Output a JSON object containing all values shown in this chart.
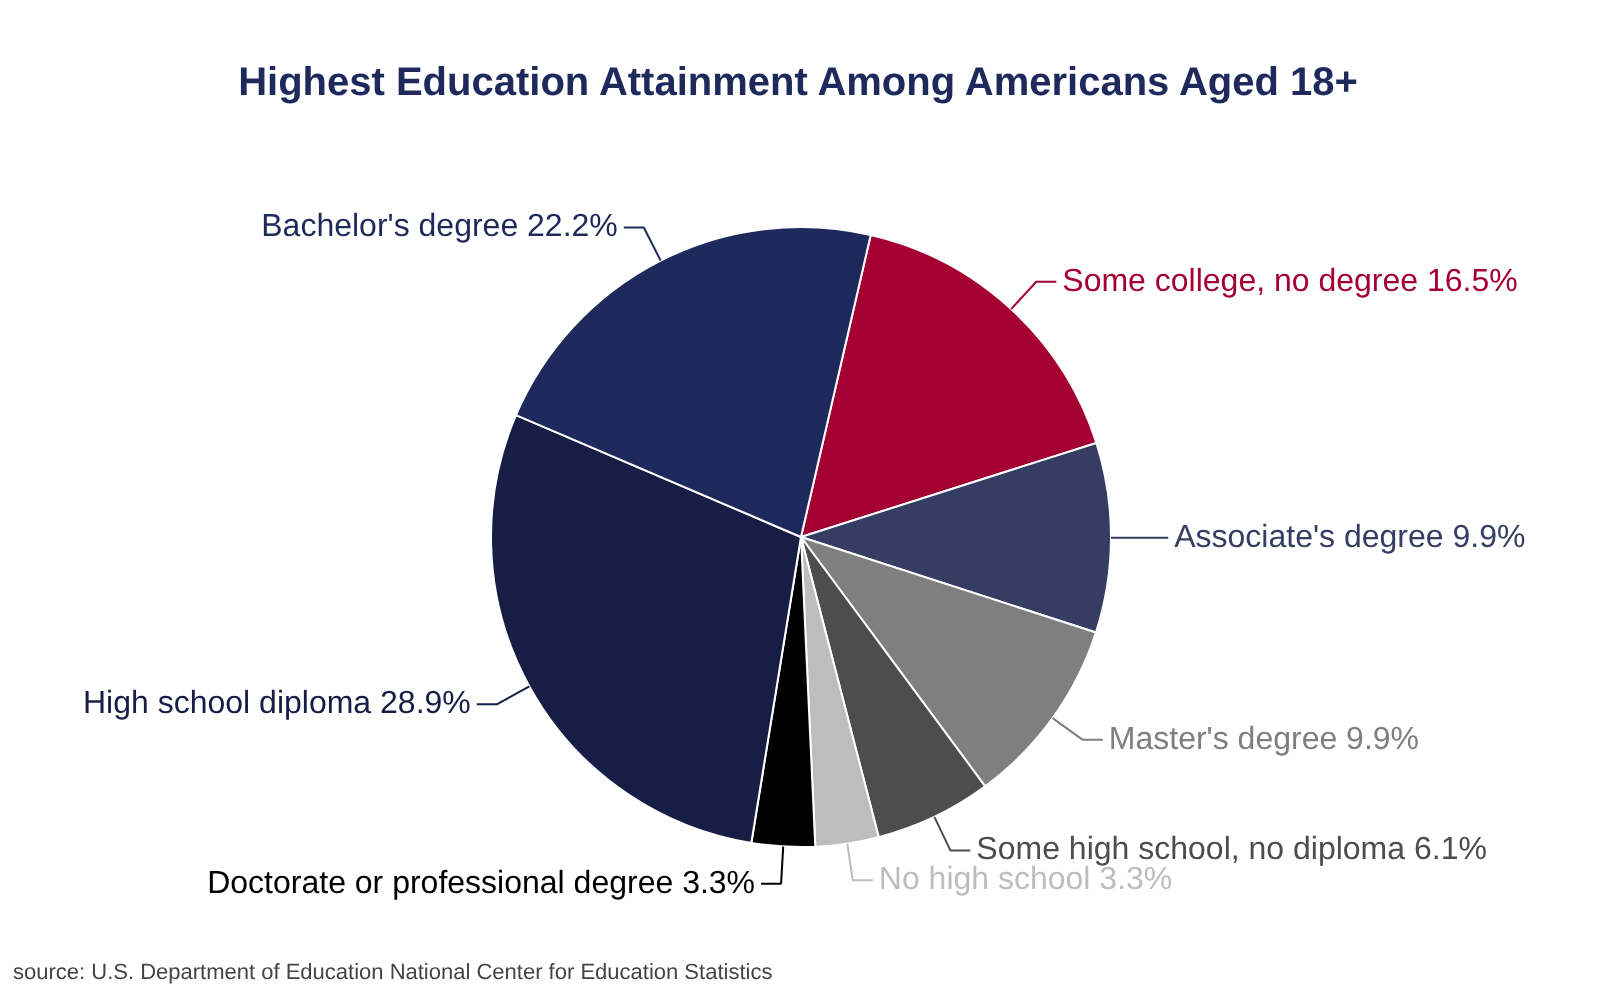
{
  "chart_data": {
    "type": "pie",
    "title": "Highest Education Attainment Among Americans Aged 18+",
    "categories": [
      "Some college, no degree",
      "Associate's degree",
      "Master's degree",
      "Some high school, no diploma",
      "No high school",
      "Doctorate or professional degree",
      "High school diploma",
      "Bachelor's degree"
    ],
    "values": [
      16.5,
      9.9,
      9.9,
      6.1,
      3.3,
      3.3,
      28.9,
      22.2
    ],
    "value_labels": [
      "16.5%",
      "9.9%",
      "9.9%",
      "6.1%",
      "3.3%",
      "3.3%",
      "28.9%",
      "22.2%"
    ],
    "colors": [
      "#a50034",
      "#363d63",
      "#7f7f7f",
      "#4d4d4d",
      "#bdbdbd",
      "#000000",
      "#171e45",
      "#1f2a5c"
    ],
    "annotations": [
      "source: U.S. Department of Education National Center for Education Statistics"
    ]
  }
}
